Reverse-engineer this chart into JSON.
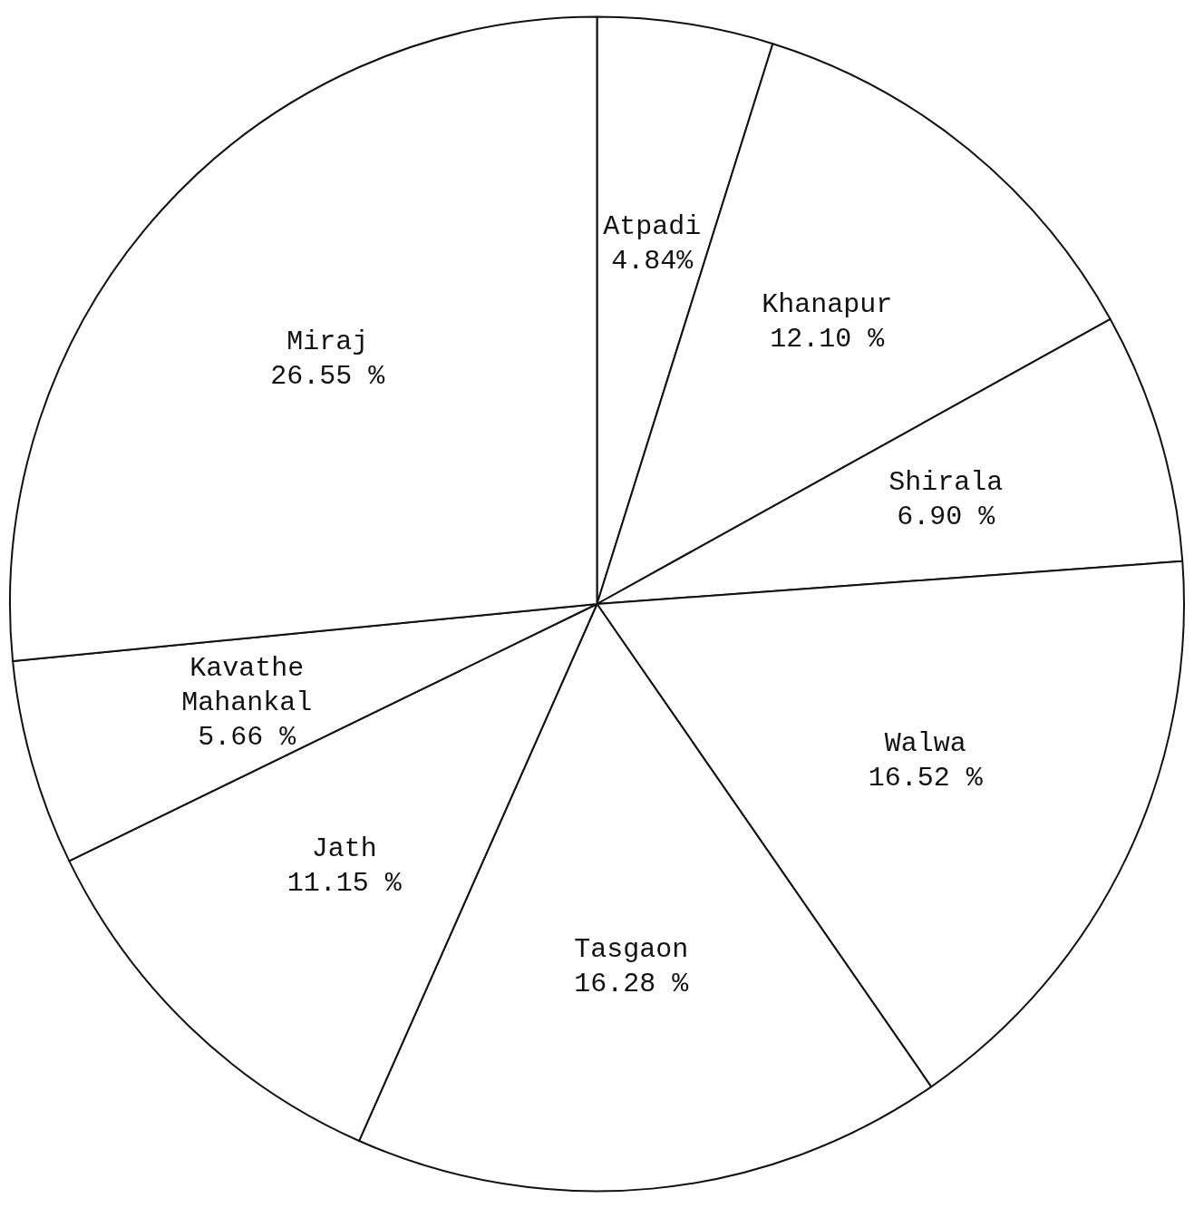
{
  "chart_data": {
    "type": "pie",
    "categories": [
      "Atpadi",
      "Khanapur",
      "Shirala",
      "Walwa",
      "Tasgaon",
      "Jath",
      "Kavathe Mahankal",
      "Miraj"
    ],
    "values": [
      4.84,
      12.1,
      6.9,
      16.52,
      16.28,
      11.15,
      5.66,
      26.55
    ],
    "value_labels": [
      "4.84%",
      "12.10 %",
      "6.90 %",
      "16.52 %",
      "16.28 %",
      "11.15 %",
      "5.66 %",
      "26.55 %"
    ],
    "colors": [
      "#ffffff",
      "#ffffff",
      "#ffffff",
      "#ffffff",
      "#ffffff",
      "#ffffff",
      "#ffffff",
      "#ffffff"
    ],
    "legend": false
  }
}
